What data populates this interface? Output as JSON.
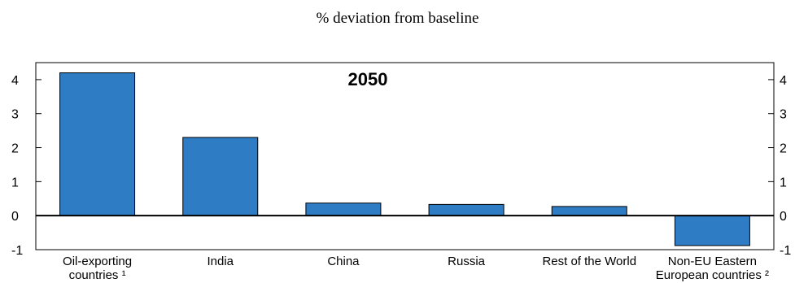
{
  "subtitle": "% deviation from baseline",
  "chart_data": {
    "type": "bar",
    "annotation": "2050",
    "categories": [
      [
        "Oil-exporting",
        "countries ¹"
      ],
      [
        "India"
      ],
      [
        "China"
      ],
      [
        "Russia"
      ],
      [
        "Rest of the World"
      ],
      [
        "Non-EU Eastern",
        "European countries ²"
      ]
    ],
    "values": [
      4.2,
      2.3,
      0.37,
      0.33,
      0.27,
      -0.88
    ],
    "ylim": [
      -1,
      4.5
    ],
    "yticks": [
      -1,
      0,
      1,
      2,
      3,
      4
    ],
    "bar_color": "#2d7cc4",
    "grid": false
  }
}
